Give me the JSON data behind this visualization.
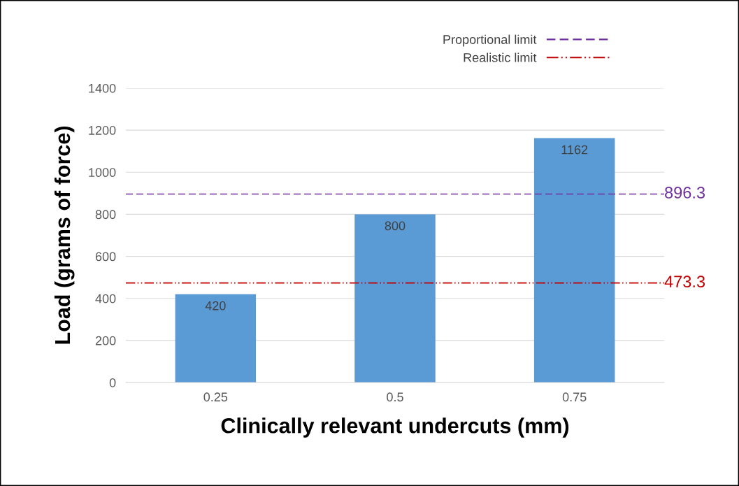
{
  "chart_data": {
    "type": "bar",
    "xlabel": "Clinically relevant undercuts (mm)",
    "ylabel": "Load (grams of force)",
    "categories": [
      "0.25",
      "0.5",
      "0.75"
    ],
    "values": [
      420,
      800,
      1162
    ],
    "color": "#5b9bd5",
    "data_labels": true,
    "ylim": [
      0,
      1400
    ],
    "yticks": [
      0,
      200,
      400,
      600,
      800,
      1000,
      1200,
      1400
    ],
    "grid": "y",
    "legend": "top right",
    "ref_lines": [
      {
        "axis": "y",
        "value": 896.3,
        "label": "Proportional limit",
        "color": "#7030a0",
        "line_style": "dashed"
      },
      {
        "axis": "y",
        "value": 473.3,
        "label": "Realistic limit",
        "color": "#c00000",
        "line_style": "dashdot"
      }
    ],
    "annotations": [
      "896.3",
      "473.3"
    ]
  }
}
